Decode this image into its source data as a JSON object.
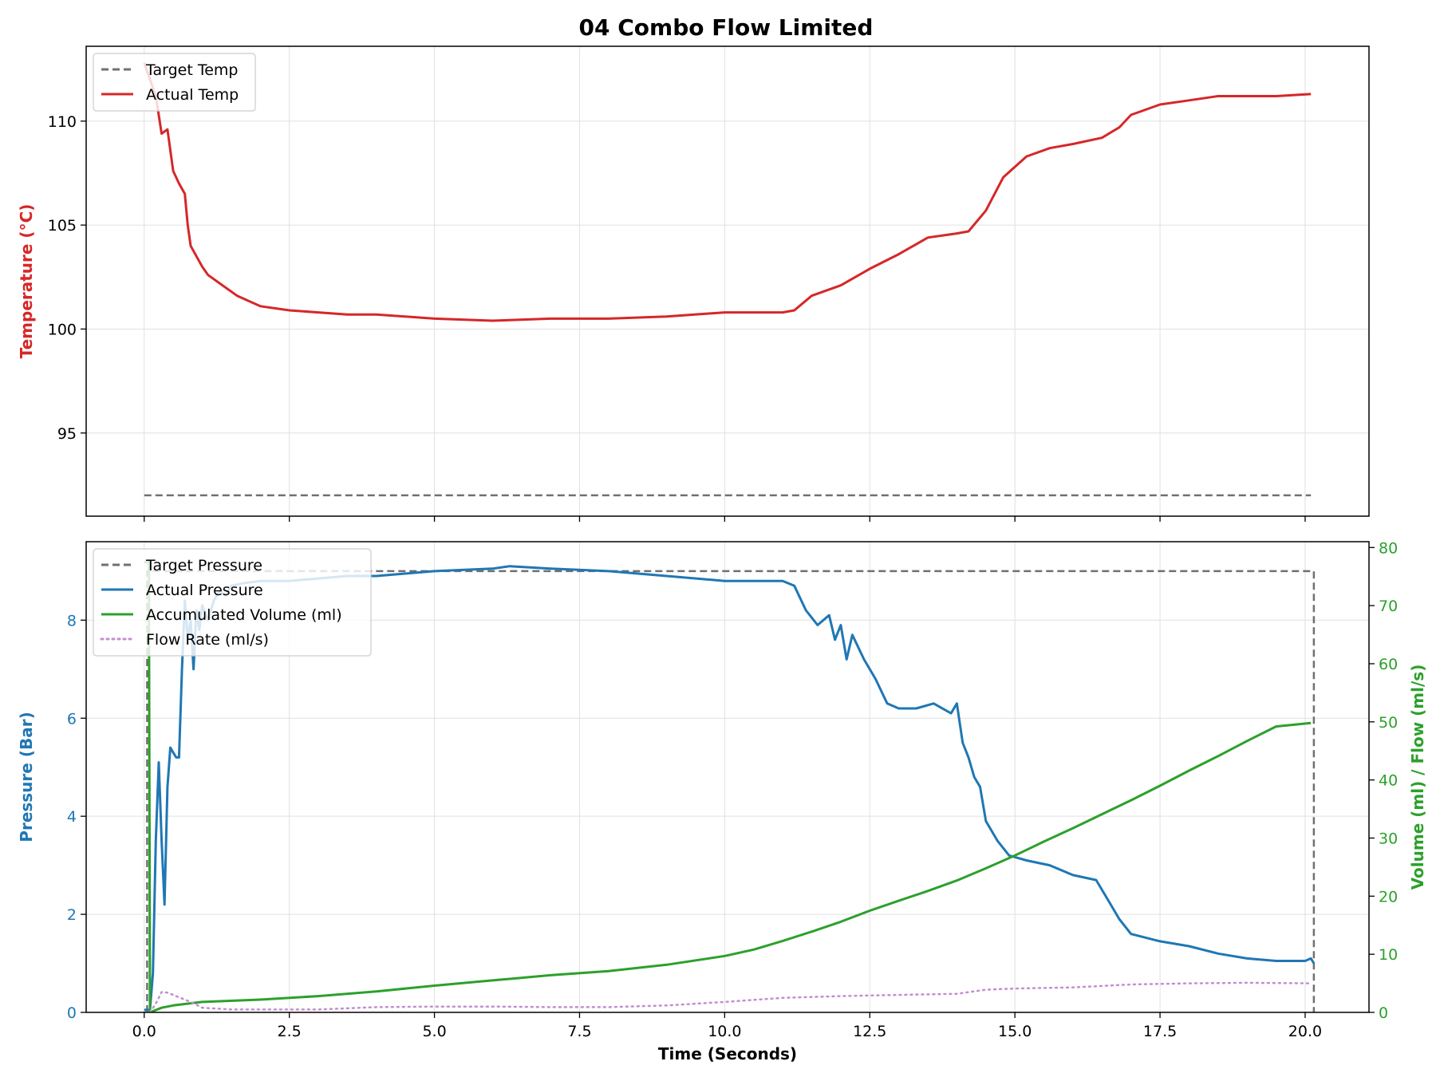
{
  "chart_title": "04 Combo Flow Limited",
  "colors": {
    "target": "#707070",
    "temp": "#d62728",
    "pressure": "#1f77b4",
    "volume": "#2ca02c",
    "flow": "#c38fd0"
  },
  "chart_data": [
    {
      "type": "line",
      "title": "04 Combo Flow Limited",
      "xlabel": "",
      "ylabel": "Temperature (°C)",
      "xlim": [
        -1.0,
        21.1
      ],
      "ylim": [
        91.0,
        113.6
      ],
      "x_ticks": [
        0.0,
        2.5,
        5.0,
        7.5,
        10.0,
        12.5,
        15.0,
        17.5,
        20.0
      ],
      "y_ticks": [
        95,
        100,
        105,
        110
      ],
      "y_tick_labels": [
        "95",
        "100",
        "105",
        "110"
      ],
      "grid": true,
      "legend": "upper-left",
      "series": [
        {
          "name": "Target Temp",
          "style": "dashed",
          "color": "#707070",
          "x": [
            0.0,
            20.1
          ],
          "y": [
            92.0,
            92.0
          ]
        },
        {
          "name": "Actual Temp",
          "style": "solid",
          "color": "#d62728",
          "x": [
            0.0,
            0.2,
            0.3,
            0.4,
            0.5,
            0.6,
            0.7,
            0.75,
            0.8,
            0.9,
            1.0,
            1.1,
            1.3,
            1.6,
            2.0,
            2.5,
            3.0,
            3.5,
            4.0,
            5.0,
            6.0,
            7.0,
            8.0,
            9.0,
            10.0,
            10.5,
            11.0,
            11.2,
            11.5,
            12.0,
            12.5,
            13.0,
            13.5,
            14.0,
            14.2,
            14.5,
            14.8,
            15.2,
            15.6,
            16.0,
            16.5,
            16.8,
            17.0,
            17.5,
            18.0,
            18.5,
            19.0,
            19.5,
            20.1
          ],
          "y": [
            112.8,
            111.2,
            109.4,
            109.6,
            107.6,
            107.0,
            106.5,
            105.0,
            104.0,
            103.5,
            103.0,
            102.6,
            102.2,
            101.6,
            101.1,
            100.9,
            100.8,
            100.7,
            100.7,
            100.5,
            100.4,
            100.5,
            100.5,
            100.6,
            100.8,
            100.8,
            100.8,
            100.9,
            101.6,
            102.1,
            102.9,
            103.6,
            104.4,
            104.6,
            104.7,
            105.7,
            107.3,
            108.3,
            108.7,
            108.9,
            109.2,
            109.7,
            110.3,
            110.8,
            111.0,
            111.2,
            111.2,
            111.2,
            111.3
          ]
        }
      ]
    },
    {
      "type": "line",
      "xlabel": "Time (Seconds)",
      "ylabel": "Pressure (Bar)",
      "ylabel_right": "Volume (ml) / Flow (ml/s)",
      "xlim": [
        -1.0,
        21.1
      ],
      "ylim": [
        0,
        9.6
      ],
      "ylim_right": [
        0,
        81
      ],
      "x_ticks": [
        0.0,
        2.5,
        5.0,
        7.5,
        10.0,
        12.5,
        15.0,
        17.5,
        20.0
      ],
      "x_tick_labels": [
        "0.0",
        "2.5",
        "5.0",
        "7.5",
        "10.0",
        "12.5",
        "15.0",
        "17.5",
        "20.0"
      ],
      "y_ticks": [
        0,
        2,
        4,
        6,
        8
      ],
      "y_tick_labels": [
        "0",
        "2",
        "4",
        "6",
        "8"
      ],
      "y_ticks_right": [
        0,
        10,
        20,
        30,
        40,
        50,
        60,
        70,
        80
      ],
      "y_tick_labels_right": [
        "0",
        "10",
        "20",
        "30",
        "40",
        "50",
        "60",
        "70",
        "80"
      ],
      "grid": true,
      "legend": "upper-left",
      "series": [
        {
          "name": "Target Pressure",
          "style": "dashed",
          "color": "#707070",
          "axis": "left",
          "x": [
            0.05,
            0.05,
            20.15,
            20.15
          ],
          "y": [
            0,
            9.0,
            9.0,
            0
          ]
        },
        {
          "name": "Actual Pressure",
          "style": "solid",
          "color": "#1f77b4",
          "axis": "left",
          "x": [
            0.0,
            0.1,
            0.15,
            0.2,
            0.25,
            0.3,
            0.35,
            0.4,
            0.45,
            0.5,
            0.55,
            0.6,
            0.65,
            0.7,
            0.75,
            0.8,
            0.85,
            0.9,
            0.95,
            1.0,
            1.1,
            1.2,
            1.3,
            1.4,
            1.5,
            1.7,
            2.0,
            2.5,
            3.0,
            3.5,
            4.0,
            5.0,
            6.0,
            6.3,
            7.0,
            8.0,
            9.0,
            10.0,
            10.5,
            11.0,
            11.2,
            11.4,
            11.6,
            11.8,
            11.9,
            12.0,
            12.1,
            12.2,
            12.4,
            12.6,
            12.8,
            13.0,
            13.3,
            13.6,
            13.9,
            14.0,
            14.1,
            14.2,
            14.3,
            14.4,
            14.5,
            14.7,
            14.9,
            15.2,
            15.6,
            16.0,
            16.4,
            16.6,
            16.8,
            17.0,
            17.5,
            18.0,
            18.5,
            19.0,
            19.5,
            20.0,
            20.1,
            20.15
          ],
          "y": [
            0.05,
            0.05,
            0.8,
            3.5,
            5.1,
            3.5,
            2.2,
            4.6,
            5.4,
            5.3,
            5.2,
            5.2,
            7.0,
            8.4,
            7.6,
            8.0,
            7.0,
            8.2,
            7.8,
            8.3,
            8.0,
            8.4,
            8.6,
            8.5,
            8.7,
            8.75,
            8.8,
            8.8,
            8.85,
            8.9,
            8.9,
            9.0,
            9.05,
            9.1,
            9.05,
            9.0,
            8.9,
            8.8,
            8.8,
            8.8,
            8.7,
            8.2,
            7.9,
            8.1,
            7.6,
            7.9,
            7.2,
            7.7,
            7.2,
            6.8,
            6.3,
            6.2,
            6.2,
            6.3,
            6.1,
            6.3,
            5.5,
            5.2,
            4.8,
            4.6,
            3.9,
            3.5,
            3.2,
            3.1,
            3.0,
            2.8,
            2.7,
            2.3,
            1.9,
            1.6,
            1.45,
            1.35,
            1.2,
            1.1,
            1.05,
            1.05,
            1.1,
            1.0
          ]
        },
        {
          "name": "Accumulated Volume (ml)",
          "style": "solid",
          "color": "#2ca02c",
          "axis": "right",
          "x": [
            0.0,
            0.08,
            0.1,
            0.15,
            0.3,
            0.5,
            1.0,
            2.0,
            3.0,
            4.0,
            5.0,
            6.0,
            7.0,
            8.0,
            9.0,
            10.0,
            10.5,
            11.0,
            11.5,
            12.0,
            12.5,
            13.0,
            13.5,
            14.0,
            14.5,
            15.0,
            15.5,
            16.0,
            16.5,
            17.0,
            17.5,
            18.0,
            18.5,
            19.0,
            19.5,
            20.1
          ],
          "y": [
            77.5,
            77.5,
            0,
            0.2,
            0.8,
            1.2,
            1.8,
            2.2,
            2.8,
            3.6,
            4.6,
            5.5,
            6.4,
            7.1,
            8.2,
            9.7,
            10.8,
            12.3,
            13.9,
            15.6,
            17.5,
            19.2,
            20.9,
            22.7,
            24.8,
            27.0,
            29.4,
            31.7,
            34.1,
            36.5,
            39.0,
            41.6,
            44.1,
            46.7,
            49.2,
            49.8
          ]
        },
        {
          "name": "Flow Rate (ml/s)",
          "style": "dotted",
          "color": "#c38fd0",
          "axis": "right",
          "x": [
            0.0,
            0.1,
            0.2,
            0.3,
            0.4,
            0.5,
            0.6,
            0.8,
            1.0,
            1.5,
            2.0,
            3.0,
            4.0,
            5.0,
            6.0,
            7.0,
            8.0,
            9.0,
            10.0,
            11.0,
            12.0,
            13.0,
            14.0,
            14.5,
            15.0,
            16.0,
            17.0,
            18.0,
            19.0,
            20.1
          ],
          "y": [
            0,
            0,
            1.5,
            3.5,
            3.4,
            3.0,
            2.6,
            1.8,
            0.8,
            0.5,
            0.5,
            0.5,
            0.9,
            1.0,
            1.0,
            0.9,
            0.9,
            1.2,
            1.8,
            2.5,
            2.8,
            3.0,
            3.2,
            3.9,
            4.1,
            4.3,
            4.8,
            5.0,
            5.1,
            5.0
          ]
        }
      ]
    }
  ]
}
